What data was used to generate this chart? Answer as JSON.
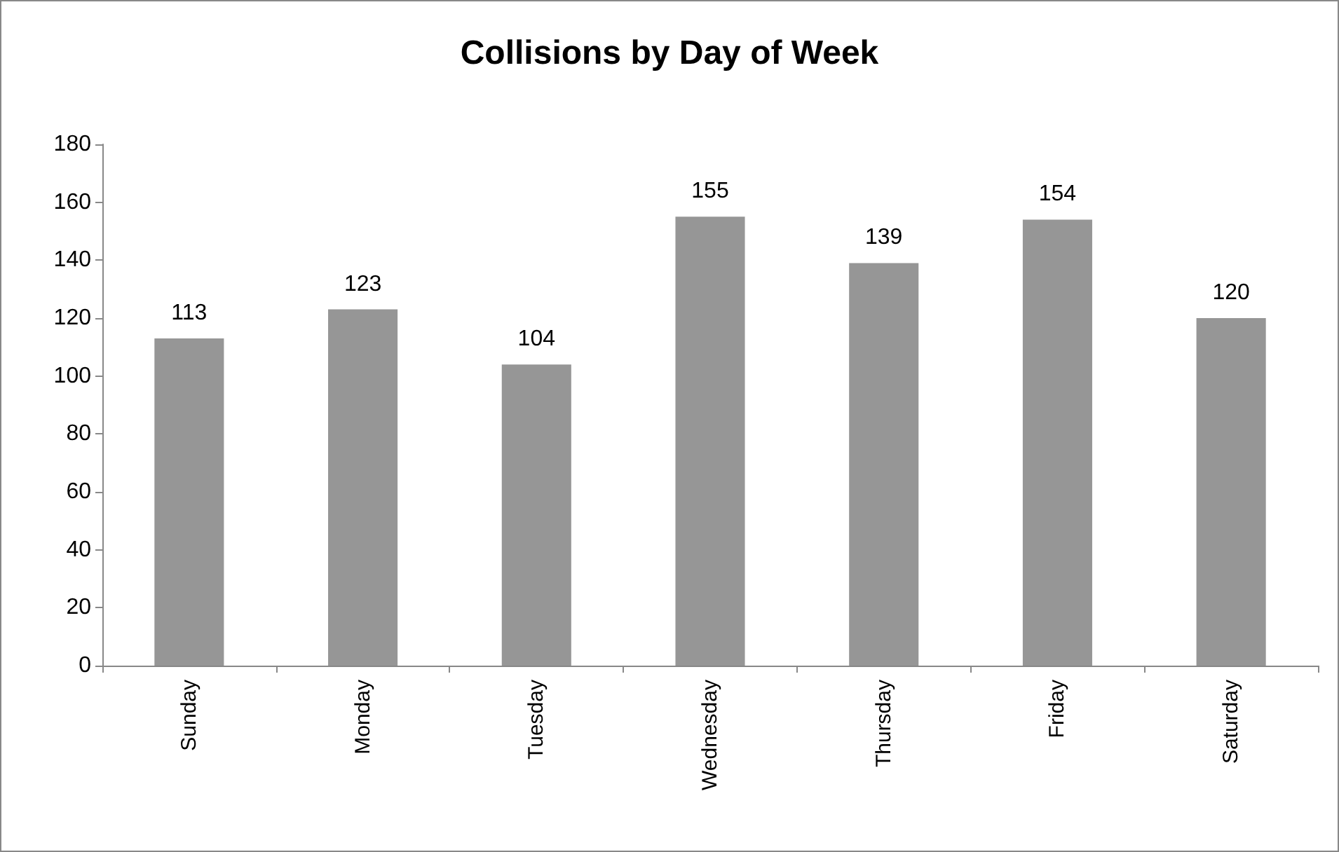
{
  "chart_data": {
    "type": "bar",
    "title": "Collisions by Day of Week",
    "categories": [
      "Sunday",
      "Monday",
      "Tuesday",
      "Wednesday",
      "Thursday",
      "Friday",
      "Saturday"
    ],
    "values": [
      113,
      123,
      104,
      155,
      139,
      154,
      120
    ],
    "color": "#969696",
    "ylim": [
      0,
      180
    ],
    "yticks": [
      0,
      20,
      40,
      60,
      80,
      100,
      120,
      140,
      160,
      180
    ],
    "grid": false,
    "data_labels": true
  }
}
